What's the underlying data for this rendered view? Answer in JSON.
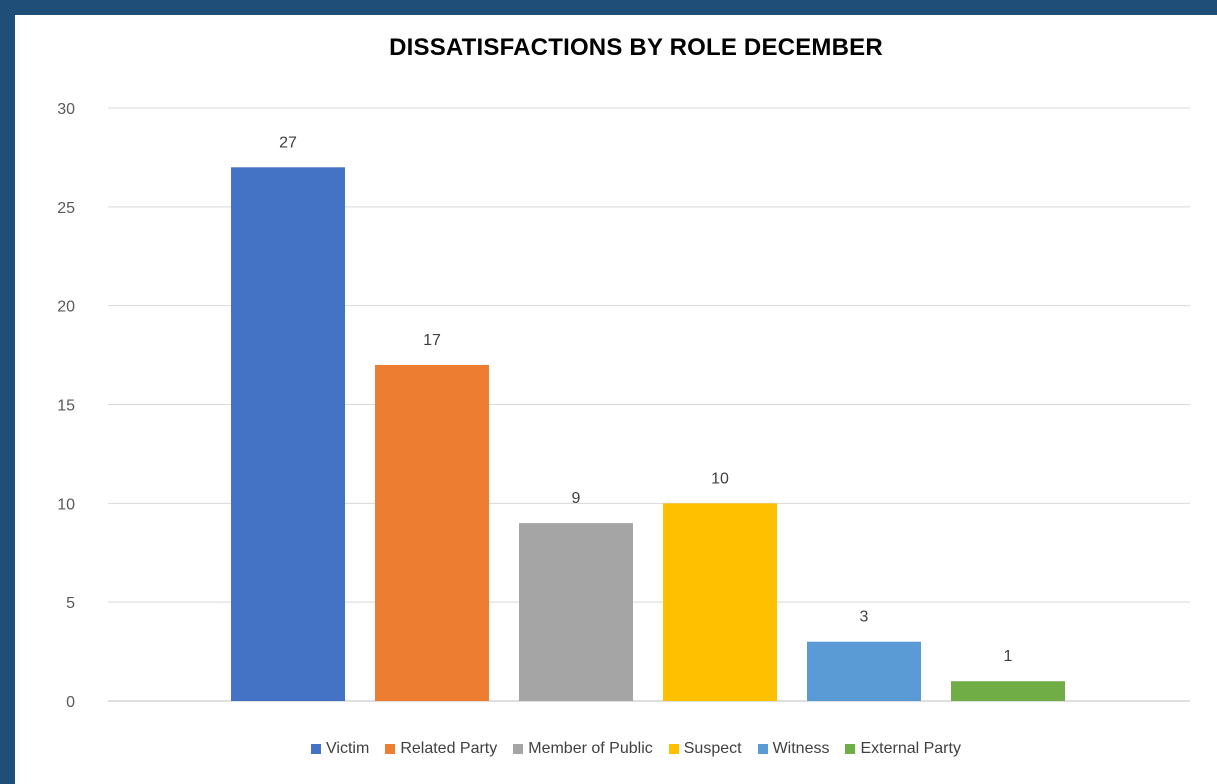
{
  "chart_data": {
    "type": "bar",
    "title": "DISSATISFACTIONS BY ROLE DECEMBER",
    "categories": [
      "Victim",
      "Related Party",
      "Member of Public",
      "Suspect",
      "Witness",
      "External Party"
    ],
    "values": [
      27,
      17,
      9,
      10,
      3,
      1
    ],
    "colors": [
      "#4472c4",
      "#ed7d31",
      "#a5a5a5",
      "#ffc000",
      "#5b9bd5",
      "#70ad47"
    ],
    "ylim": [
      0,
      30
    ],
    "yticks": [
      0,
      5,
      10,
      15,
      20,
      25,
      30
    ],
    "grid": true,
    "data_labels": true,
    "legend_position": "bottom",
    "xlabel": "",
    "ylabel": ""
  }
}
